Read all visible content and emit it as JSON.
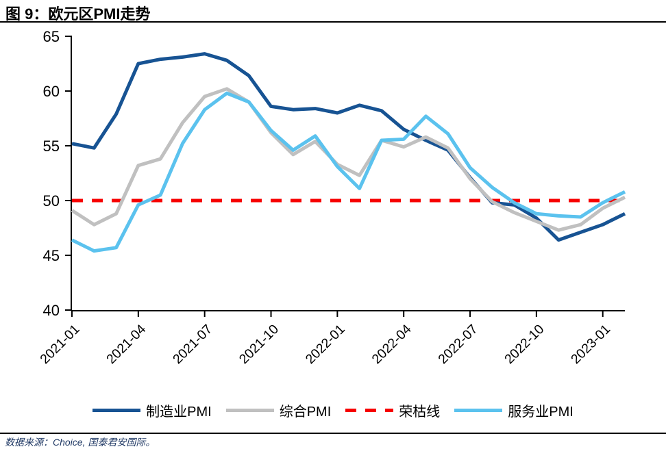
{
  "header": {
    "title": "图 9：欧元区PMI走势"
  },
  "footer": {
    "source": "数据来源：Choice, 国泰君安国际。"
  },
  "colors": {
    "manufacturing": "#175393",
    "composite": "#C0C0C0",
    "services": "#5BC2EE",
    "threshold": "#F70000",
    "axis": "#000000",
    "source_text": "#1F3864"
  },
  "chart_data": {
    "type": "line",
    "title": "欧元区PMI走势",
    "xlabel": "",
    "ylabel": "",
    "ylim": [
      40,
      65
    ],
    "yticks": [
      40,
      45,
      50,
      55,
      60,
      65
    ],
    "n_points": 26,
    "x_label_step": 3,
    "x_labels_shown": [
      "2021-01",
      "2021-04",
      "2021-07",
      "2021-10",
      "2022-01",
      "2022-04",
      "2022-07",
      "2022-10",
      "2023-01"
    ],
    "grid": false,
    "legend_position": "bottom",
    "lines": [
      {
        "key": "manufacturing-pmi",
        "label": "制造业PMI",
        "color": "#175393",
        "style": "solid",
        "kind": "series",
        "values": [
          55.2,
          54.8,
          57.9,
          62.5,
          62.9,
          63.1,
          63.4,
          62.8,
          61.4,
          58.6,
          58.3,
          58.4,
          58.0,
          58.7,
          58.2,
          56.5,
          55.5,
          54.6,
          52.1,
          49.8,
          49.6,
          48.4,
          46.4,
          47.1,
          47.8,
          48.8
        ]
      },
      {
        "key": "composite-pmi",
        "label": "综合PMI",
        "color": "#C0C0C0",
        "style": "solid",
        "kind": "series",
        "values": [
          49.1,
          47.8,
          48.8,
          53.2,
          53.8,
          57.1,
          59.5,
          60.2,
          59.0,
          56.2,
          54.2,
          55.4,
          53.3,
          52.3,
          55.5,
          54.9,
          55.8,
          54.8,
          52.0,
          49.9,
          48.9,
          48.1,
          47.3,
          47.8,
          49.3,
          50.3
        ]
      },
      {
        "key": "boom-bust-line",
        "label": "荣枯线",
        "color": "#F70000",
        "style": "dashed",
        "kind": "reference",
        "value": 50
      },
      {
        "key": "services-pmi",
        "label": "服务业PMI",
        "color": "#5BC2EE",
        "style": "solid",
        "kind": "series",
        "values": [
          46.4,
          45.4,
          45.7,
          49.6,
          50.5,
          55.2,
          58.3,
          59.8,
          59.0,
          56.4,
          54.6,
          55.9,
          53.1,
          51.1,
          55.5,
          55.6,
          57.7,
          56.1,
          53.0,
          51.2,
          49.8,
          48.8,
          48.6,
          48.5,
          49.8,
          50.8
        ]
      }
    ]
  }
}
